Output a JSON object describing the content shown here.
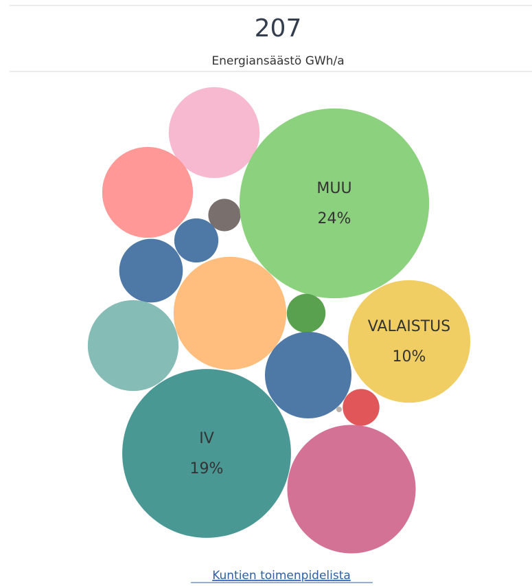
{
  "kpi": {
    "value": 207,
    "label": "Energiansäästö GWh/a"
  },
  "chart_data": {
    "type": "packed-bubble",
    "categories": [
      null,
      null,
      null,
      null,
      null,
      "MUU",
      null,
      null,
      null,
      null,
      "VALAISTUS",
      null,
      null,
      null,
      "IV",
      null
    ],
    "values": [
      5.5,
      5.5,
      0.7,
      1.3,
      2.7,
      24,
      8.5,
      1,
      5.5,
      5,
      10,
      0.9,
      0.02,
      0,
      19,
      11
    ],
    "value_labels": [
      null,
      null,
      null,
      null,
      null,
      "24%",
      null,
      null,
      null,
      null,
      "10%",
      null,
      null,
      null,
      "19%",
      null
    ],
    "colors": [
      "#f7b9cf",
      "#ff9896",
      "#79706e",
      "#4e79a7",
      "#4e79a7",
      "#8cd17d",
      "#ffbe7d",
      "#59a14f",
      "#86bcb6",
      "#4e79a7",
      "#f1ce63",
      "#e15759",
      "#bab0ac",
      "#bab0ac",
      "#499894",
      "#d37295"
    ]
  },
  "link": "Kuntien toimenpidelista"
}
